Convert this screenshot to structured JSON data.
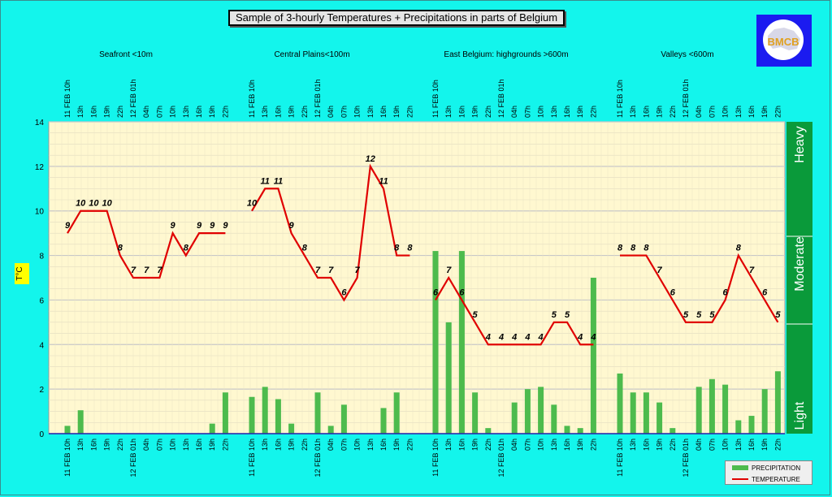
{
  "title": "Sample of 3-hourly Temperatures + Precipitations in parts of Belgium",
  "logo_text": "BMCB",
  "legend": {
    "precip": "PRECIPITATION",
    "temp": "TEMPERATURE"
  },
  "colors": {
    "background": "#13f5ec",
    "plot": "#fff8d0",
    "precip": "#4dbb4d",
    "temp": "#e00000",
    "band": "#0a9a3a",
    "logo": "#1b1bf0"
  },
  "chart_data": {
    "type": "bar+line",
    "ylabel": "T°C",
    "ylim": [
      0,
      14
    ],
    "yticks": [
      0,
      2,
      4,
      6,
      8,
      10,
      12,
      14
    ],
    "grid": true,
    "legend_position": "bottom-right",
    "intensity_bands": [
      "Light",
      "Moderate",
      "Heavy"
    ],
    "regions": [
      "Seafront <10m",
      "Central Plains<100m",
      "East Belgium:     highgrounds >600m",
      "Valleys <600m"
    ],
    "time_labels": [
      "11 FEB 10h",
      "13h",
      "16h",
      "19h",
      "22h",
      "12 FEB 01h",
      "04h",
      "07h",
      "10h",
      "13h",
      "16h",
      "19h",
      "22h"
    ],
    "series": [
      {
        "name": "TEMPERATURE",
        "type": "line",
        "groups": [
          [
            9,
            10,
            10,
            10,
            8,
            7,
            7,
            7,
            9,
            8,
            9,
            9,
            9
          ],
          [
            10,
            11,
            11,
            9,
            8,
            7,
            7,
            6,
            7,
            12,
            11,
            8,
            8
          ],
          [
            6,
            7,
            6,
            5,
            4,
            4,
            4,
            4,
            4,
            5,
            5,
            4,
            4
          ],
          [
            8,
            8,
            8,
            7,
            6,
            5,
            5,
            5,
            6,
            8,
            7,
            6,
            5
          ]
        ]
      },
      {
        "name": "PRECIPITATION",
        "type": "bar",
        "groups": [
          [
            0.35,
            1.05,
            0,
            0,
            0,
            0,
            0,
            0,
            0,
            0,
            0,
            0.45,
            1.85
          ],
          [
            1.65,
            2.1,
            1.55,
            0.45,
            0,
            1.85,
            0.35,
            1.3,
            0,
            0,
            1.15,
            1.85,
            0
          ],
          [
            8.2,
            5.0,
            8.2,
            1.85,
            0.25,
            0,
            1.4,
            2.0,
            2.1,
            1.3,
            0.35,
            0.25,
            7.0
          ],
          [
            2.7,
            1.85,
            1.85,
            1.4,
            0.25,
            0,
            2.1,
            2.45,
            2.2,
            0.6,
            0.8,
            2.0,
            2.8
          ]
        ]
      }
    ]
  }
}
